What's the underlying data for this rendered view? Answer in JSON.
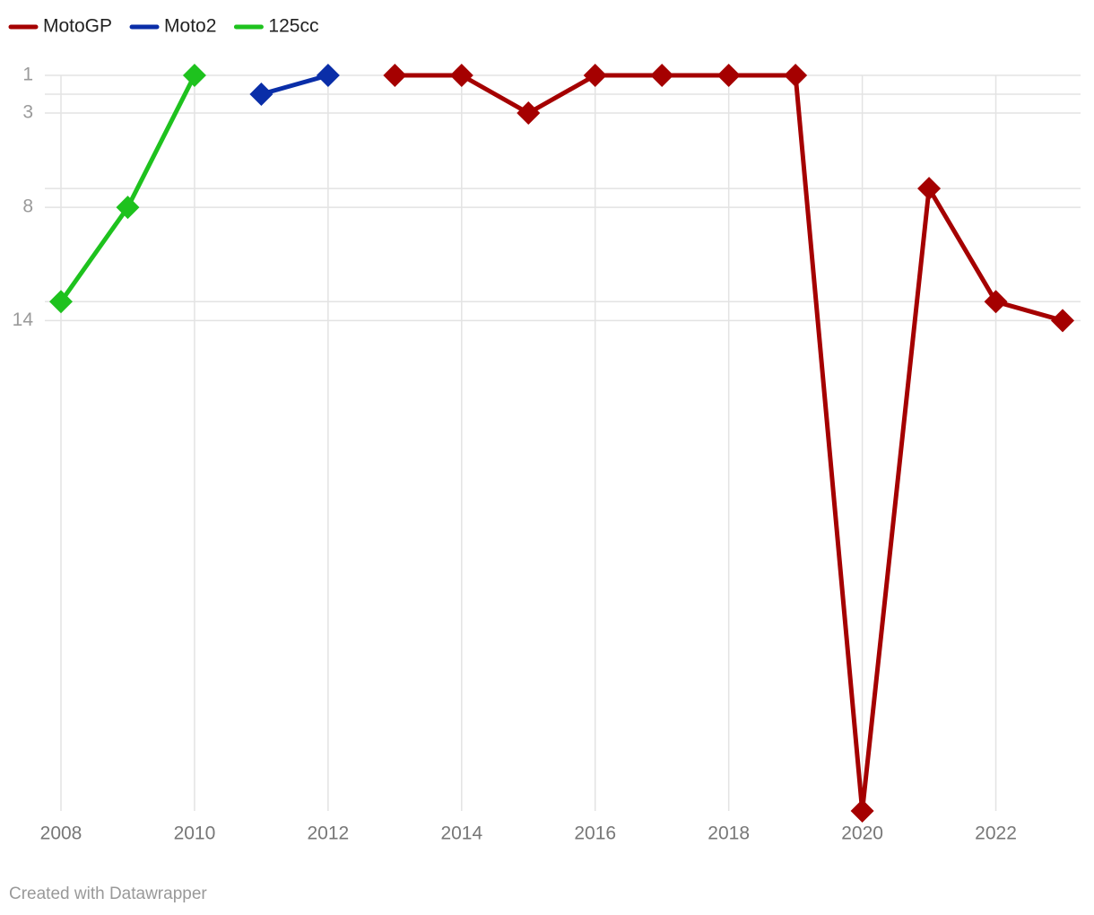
{
  "chart_data": {
    "type": "line",
    "x": [
      2008,
      2009,
      2010,
      2011,
      2012,
      2013,
      2014,
      2015,
      2016,
      2017,
      2018,
      2019,
      2020,
      2021,
      2022,
      2023
    ],
    "series": [
      {
        "name": "MotoGP",
        "color": "#a50000",
        "values": [
          null,
          null,
          null,
          null,
          null,
          1,
          1,
          3,
          1,
          1,
          1,
          1,
          40,
          7,
          13,
          14
        ]
      },
      {
        "name": "Moto2",
        "color": "#0a2ea8",
        "values": [
          null,
          null,
          null,
          2,
          1,
          null,
          null,
          null,
          null,
          null,
          null,
          null,
          null,
          null,
          null,
          null
        ]
      },
      {
        "name": "125cc",
        "color": "#1ec21e",
        "values": [
          13,
          8,
          1,
          null,
          null,
          null,
          null,
          null,
          null,
          null,
          null,
          null,
          null,
          null,
          null,
          null
        ]
      }
    ],
    "xlim": [
      2008,
      2023
    ],
    "xticks": [
      2008,
      2010,
      2012,
      2014,
      2016,
      2018,
      2020,
      2022
    ],
    "ylim": [
      1,
      40
    ],
    "yticks": [
      1,
      3,
      8,
      14
    ],
    "y_minor_ticks": [
      2,
      7,
      13
    ],
    "y_inverted": true,
    "grid": true,
    "legend": "top-left",
    "credit": "Created with Datawrapper"
  }
}
